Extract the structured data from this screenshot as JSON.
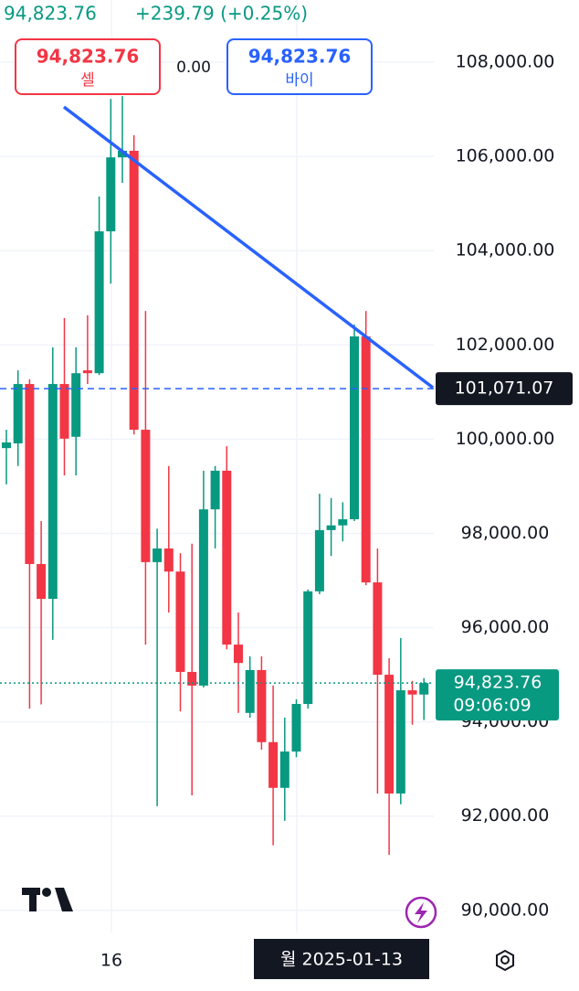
{
  "header": {
    "price": "94,823.76",
    "change": "+239.79 (+0.25%)"
  },
  "sell": {
    "price": "94,823.76",
    "label": "셀"
  },
  "spread": "0.00",
  "buy": {
    "price": "94,823.76",
    "label": "바이"
  },
  "chart_data": {
    "type": "candlestick",
    "categories": [
      null,
      null,
      null,
      null,
      null,
      null,
      null,
      null,
      null,
      "16",
      null,
      null,
      null,
      null,
      null,
      null,
      null,
      null,
      null,
      null,
      null,
      null,
      null,
      null,
      null,
      null,
      null,
      null,
      null,
      null,
      null,
      null,
      null,
      null,
      null,
      null,
      null
    ],
    "open": [
      99810,
      99910,
      101170,
      97350,
      96610,
      101170,
      100050,
      101460,
      101400,
      104410,
      105980,
      106120,
      100200,
      97390,
      97680,
      97190,
      95060,
      94770,
      98510,
      99330,
      95640,
      94190,
      95100,
      93570,
      92600,
      93370,
      94380,
      96770,
      98070,
      98170,
      98300,
      102180,
      96960,
      95000,
      92480,
      94670,
      94580
    ],
    "high": [
      100200,
      101460,
      101270,
      98260,
      101950,
      102570,
      101950,
      102630,
      105150,
      107220,
      107280,
      106450,
      102720,
      98100,
      99430,
      97580,
      97780,
      99330,
      99430,
      99850,
      96320,
      95390,
      95390,
      94770,
      94090,
      94480,
      96810,
      98840,
      98750,
      98660,
      102430,
      102720,
      97680,
      95350,
      95780,
      94870,
      94930
    ],
    "low": [
      99040,
      99430,
      94280,
      94370,
      95740,
      99230,
      99230,
      101170,
      101360,
      103300,
      105440,
      100100,
      95640,
      92210,
      96320,
      94220,
      92440,
      94730,
      97680,
      95540,
      94190,
      94090,
      93410,
      91380,
      91900,
      93250,
      94280,
      96710,
      97520,
      97830,
      98260,
      96900,
      92480,
      91180,
      92250,
      93940,
      94040
    ],
    "close": [
      99930,
      101170,
      97350,
      96610,
      101170,
      100010,
      101400,
      101400,
      104410,
      105980,
      106120,
      100200,
      97390,
      97680,
      97190,
      95060,
      94770,
      98510,
      99330,
      95640,
      95250,
      95100,
      93570,
      92600,
      93370,
      94380,
      96770,
      98070,
      98170,
      98300,
      102180,
      96960,
      95000,
      92480,
      94670,
      94580,
      94823.76
    ],
    "up_color": "#089981",
    "down_color": "#f23645",
    "ylim": [
      89530,
      109320
    ],
    "yticks": [
      {
        "value": 90000,
        "label": "90,000.00"
      },
      {
        "value": 92000,
        "label": "92,000.00"
      },
      {
        "value": 94000,
        "label": "94,000.00"
      },
      {
        "value": 96000,
        "label": "96,000.00"
      },
      {
        "value": 98000,
        "label": "98,000.00"
      },
      {
        "value": 100000,
        "label": "100,000.00"
      },
      {
        "value": 102000,
        "label": "102,000.00"
      },
      {
        "value": 104000,
        "label": "104,000.00"
      },
      {
        "value": 106000,
        "label": "106,000.00"
      },
      {
        "value": 108000,
        "label": "108,000.00"
      }
    ],
    "grid": true,
    "hline": {
      "value": 101071.07,
      "label": "101,071.07",
      "color": "#2962ff"
    },
    "last_price": {
      "value": 94823.76,
      "label": "94,823.76",
      "countdown": "09:06:09",
      "color": "#089981"
    },
    "crosshair_label": "월 2025-01-13"
  }
}
